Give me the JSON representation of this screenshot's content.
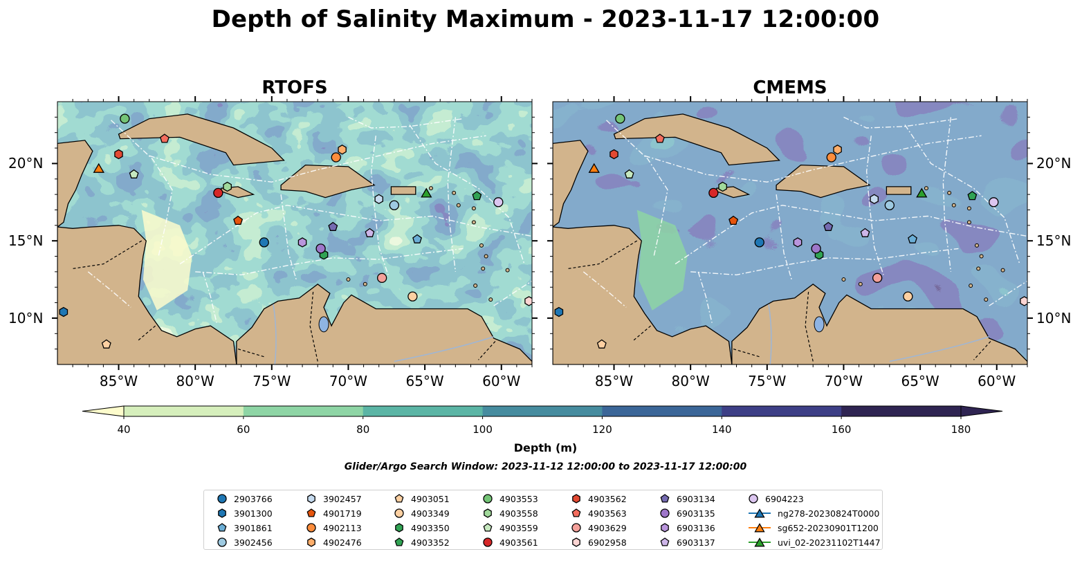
{
  "title": "Depth of Salinity Maximum - 2023-11-17 12:00:00",
  "panels": [
    {
      "title": "RTOFS"
    },
    {
      "title": "CMEMS"
    }
  ],
  "colorbar": {
    "label": "Depth (m)",
    "ticks": [
      "40",
      "60",
      "80",
      "100",
      "120",
      "140",
      "160",
      "180"
    ],
    "colors": [
      "#fdfccc",
      "#d6efbc",
      "#8ed5a5",
      "#5bb5a5",
      "#468c9f",
      "#3b6698",
      "#3d3f86",
      "#2f2452"
    ]
  },
  "search_window": "Glider/Argo Search Window: 2023-11-12 12:00:00 to 2023-11-17 12:00:00",
  "chart_data": {
    "type": "scatter",
    "subtype": "map",
    "region": "Caribbean Sea",
    "lon_range": [
      -89,
      -58
    ],
    "lat_range": [
      7,
      24
    ],
    "lat_ticks": [
      "10°N",
      "15°N",
      "20°N"
    ],
    "lon_ticks": [
      "85°W",
      "80°W",
      "75°W",
      "70°W",
      "65°W",
      "60°W"
    ],
    "colorbar_range": [
      40,
      180
    ],
    "series": [
      {
        "name": "2903766",
        "marker": "circle",
        "color": "#1f77b4",
        "lon": -75.5,
        "lat": 14.9
      },
      {
        "name": "3901300",
        "marker": "hexagon",
        "color": "#1f77b4",
        "lon": -88.6,
        "lat": 10.4
      },
      {
        "name": "3901861",
        "marker": "pentagon",
        "color": "#6baed6",
        "lon": -65.5,
        "lat": 15.1
      },
      {
        "name": "3902456",
        "marker": "circle",
        "color": "#9ecae1",
        "lon": -67.0,
        "lat": 17.3
      },
      {
        "name": "3902457",
        "marker": "hexagon",
        "color": "#c6dbef",
        "lon": -68.0,
        "lat": 17.7
      },
      {
        "name": "4901719",
        "marker": "pentagon",
        "color": "#e6550d",
        "lon": -77.2,
        "lat": 16.3
      },
      {
        "name": "4902113",
        "marker": "circle",
        "color": "#fd8d3c",
        "lon": -70.8,
        "lat": 20.4
      },
      {
        "name": "4902476",
        "marker": "hexagon",
        "color": "#fdae6b",
        "lon": -70.4,
        "lat": 20.9
      },
      {
        "name": "4903051",
        "marker": "pentagon",
        "color": "#fdd0a2",
        "lon": -85.8,
        "lat": 8.3
      },
      {
        "name": "4903349",
        "marker": "circle",
        "color": "#fdd0a2",
        "lon": -65.8,
        "lat": 11.4
      },
      {
        "name": "4903350",
        "marker": "hexagon",
        "color": "#31a354",
        "lon": -71.6,
        "lat": 14.1
      },
      {
        "name": "4903352",
        "marker": "pentagon",
        "color": "#31a354",
        "lon": -61.6,
        "lat": 17.9
      },
      {
        "name": "4903553",
        "marker": "circle",
        "color": "#74c476",
        "lon": -84.6,
        "lat": 22.9
      },
      {
        "name": "4903558",
        "marker": "hexagon",
        "color": "#a1d99b",
        "lon": -77.9,
        "lat": 18.5
      },
      {
        "name": "4903559",
        "marker": "pentagon",
        "color": "#c7e9c0",
        "lon": -84.0,
        "lat": 19.3
      },
      {
        "name": "4903561",
        "marker": "circle",
        "color": "#d62728",
        "lon": -78.5,
        "lat": 18.1
      },
      {
        "name": "4903562",
        "marker": "hexagon",
        "color": "#e34a33",
        "lon": -85.0,
        "lat": 20.6
      },
      {
        "name": "4903563",
        "marker": "pentagon",
        "color": "#f46d5e",
        "lon": -82.0,
        "lat": 21.6
      },
      {
        "name": "4903629",
        "marker": "circle",
        "color": "#f4a09a",
        "lon": -67.8,
        "lat": 12.6
      },
      {
        "name": "6902958",
        "marker": "hexagon",
        "color": "#fcd5d3",
        "lon": -58.2,
        "lat": 11.1
      },
      {
        "name": "6903134",
        "marker": "pentagon",
        "color": "#756bb1",
        "lon": -71.0,
        "lat": 15.9
      },
      {
        "name": "6903135",
        "marker": "circle",
        "color": "#9e76c9",
        "lon": -71.8,
        "lat": 14.5
      },
      {
        "name": "6903136",
        "marker": "hexagon",
        "color": "#b995dc",
        "lon": -73.0,
        "lat": 14.9
      },
      {
        "name": "6903137",
        "marker": "pentagon",
        "color": "#cdb5e8",
        "lon": -68.6,
        "lat": 15.5
      },
      {
        "name": "6904223",
        "marker": "circle",
        "color": "#dcc6f0",
        "lon": -60.2,
        "lat": 17.5
      },
      {
        "name": "ng278-20230824T0000",
        "marker": "triangle",
        "color": "#1f77b4",
        "lon": null,
        "lat": null
      },
      {
        "name": "sg652-20230901T1200",
        "marker": "triangle",
        "color": "#ff7f0e",
        "lon": -86.3,
        "lat": 19.7
      },
      {
        "name": "uvi_02-20231102T1447",
        "marker": "triangle",
        "color": "#2ca02c",
        "lon": -64.9,
        "lat": 18.1
      }
    ]
  }
}
